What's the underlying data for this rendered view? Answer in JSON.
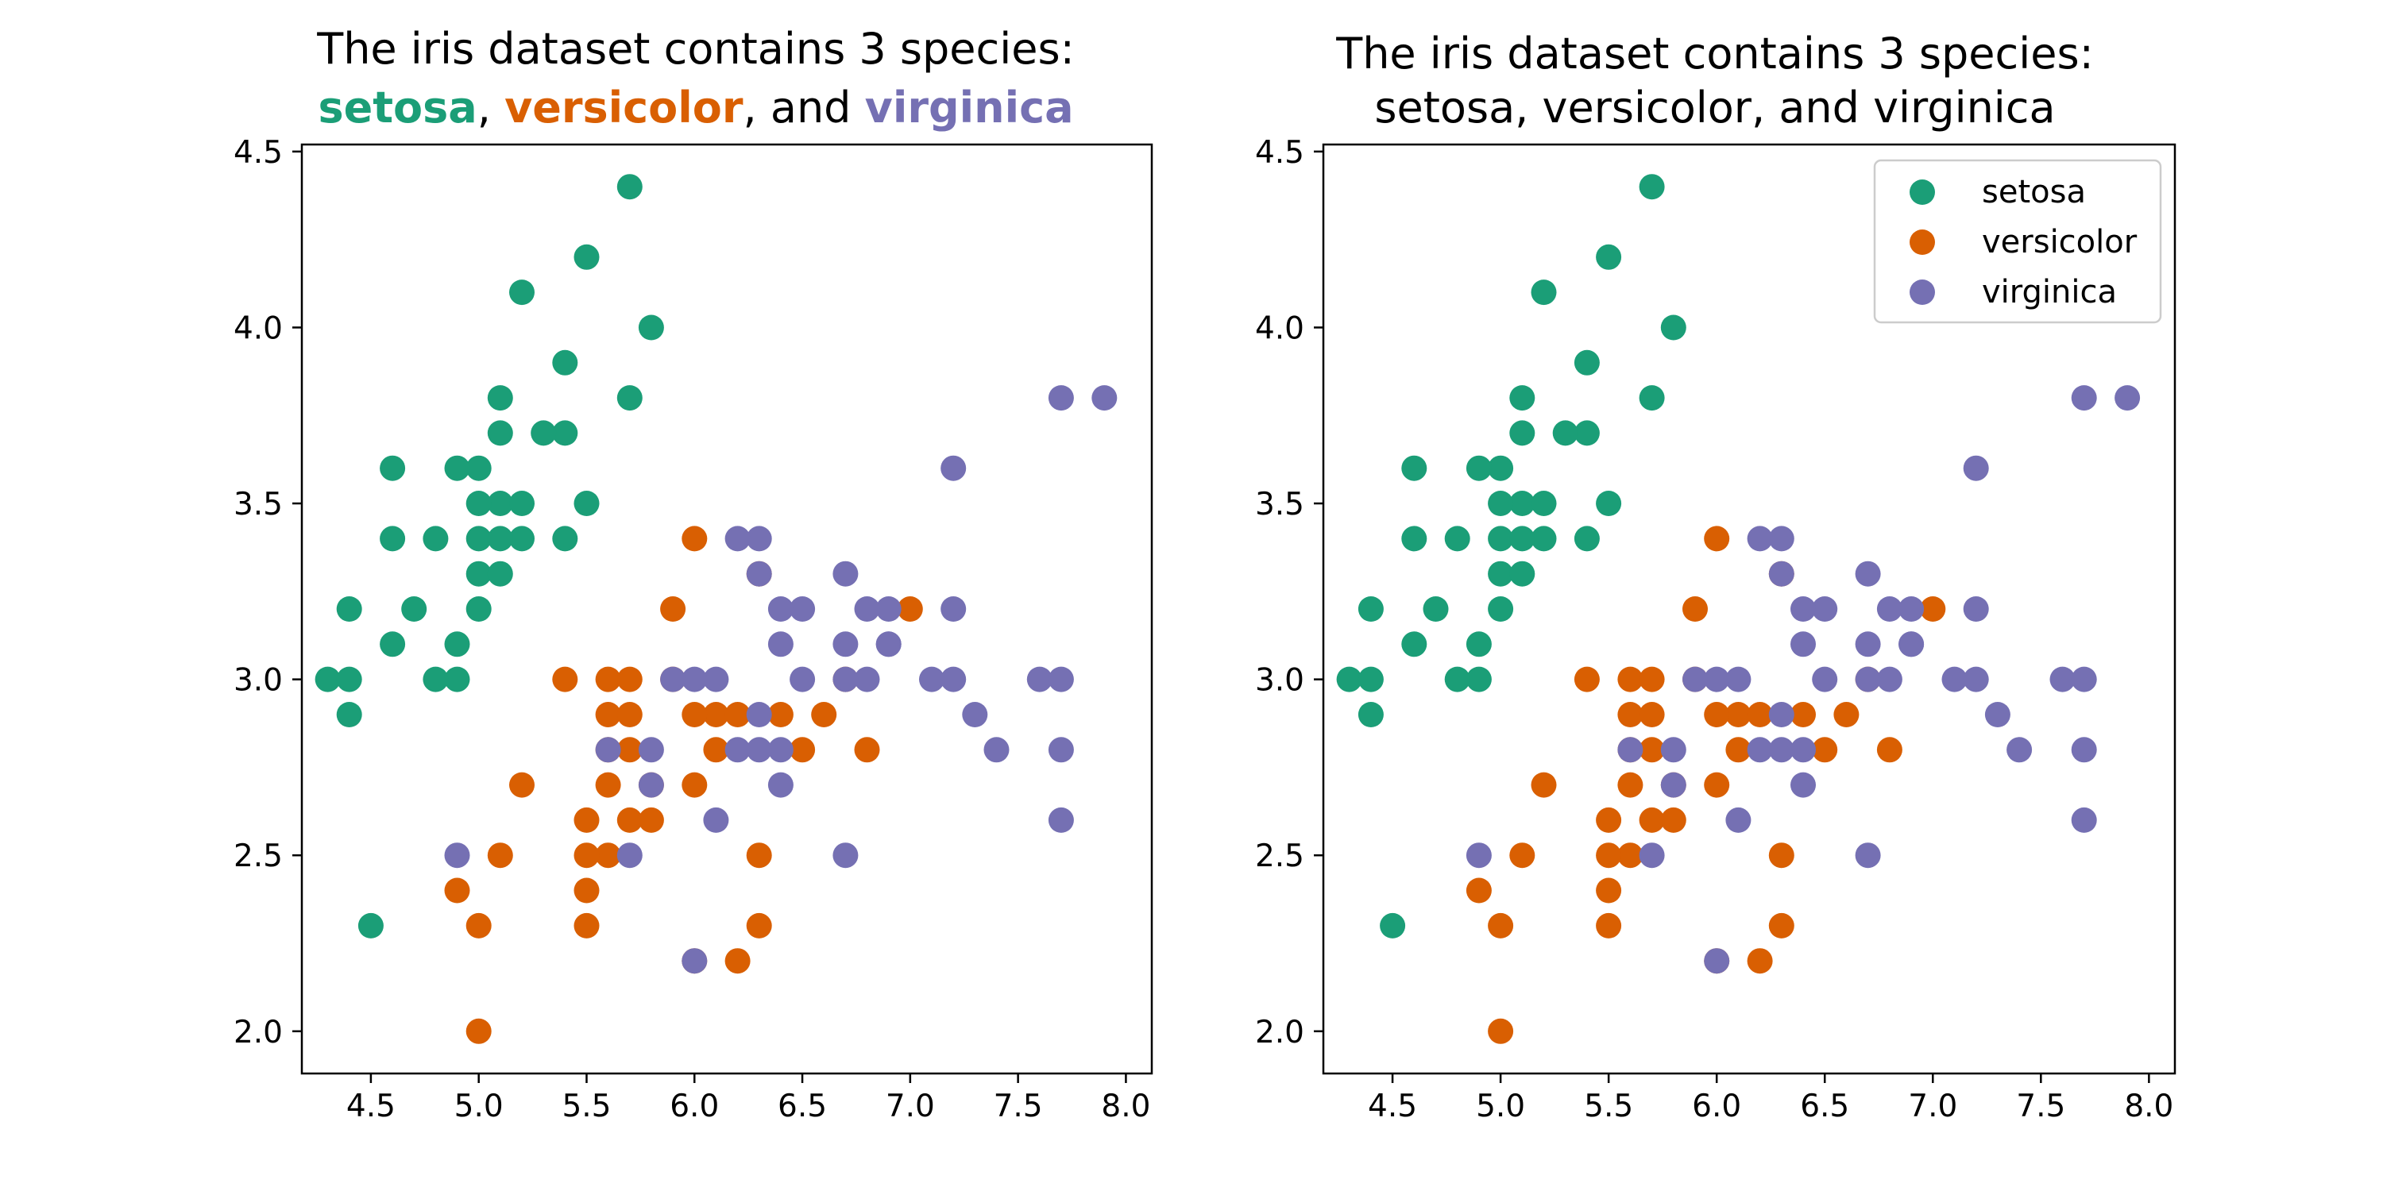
{
  "chart_data": [
    {
      "type": "scatter",
      "title_line1": "The iris dataset contains 3 species:",
      "title_line2_parts": [
        {
          "text": "setosa",
          "series": 0
        },
        {
          "text": ", "
        },
        {
          "text": "versicolor",
          "series": 1
        },
        {
          "text": ", and "
        },
        {
          "text": "virginica",
          "series": 2
        }
      ],
      "xlim": [
        4.18,
        8.12
      ],
      "ylim": [
        1.88,
        4.52
      ],
      "xticks": [
        "4.5",
        "5.0",
        "5.5",
        "6.0",
        "6.5",
        "7.0",
        "7.5",
        "8.0"
      ],
      "yticks": [
        "2.0",
        "2.5",
        "3.0",
        "3.5",
        "4.0",
        "4.5"
      ],
      "legend": null,
      "series": [
        {
          "name": "setosa",
          "color": "#1b9e77",
          "points": [
            [
              5.1,
              3.5
            ],
            [
              4.9,
              3.0
            ],
            [
              4.7,
              3.2
            ],
            [
              4.6,
              3.1
            ],
            [
              5.0,
              3.6
            ],
            [
              5.4,
              3.9
            ],
            [
              4.6,
              3.4
            ],
            [
              5.0,
              3.4
            ],
            [
              4.4,
              2.9
            ],
            [
              4.9,
              3.1
            ],
            [
              5.4,
              3.7
            ],
            [
              4.8,
              3.4
            ],
            [
              4.8,
              3.0
            ],
            [
              4.3,
              3.0
            ],
            [
              5.8,
              4.0
            ],
            [
              5.7,
              4.4
            ],
            [
              5.1,
              3.8
            ],
            [
              5.7,
              3.8
            ],
            [
              5.4,
              3.4
            ],
            [
              5.1,
              3.7
            ],
            [
              4.6,
              3.6
            ],
            [
              5.2,
              3.5
            ],
            [
              5.2,
              3.4
            ],
            [
              5.0,
              3.2
            ],
            [
              5.5,
              4.2
            ],
            [
              5.2,
              4.1
            ],
            [
              5.5,
              3.5
            ],
            [
              4.4,
              3.0
            ],
            [
              5.1,
              3.4
            ],
            [
              5.0,
              3.5
            ],
            [
              4.5,
              2.3
            ],
            [
              4.4,
              3.2
            ],
            [
              5.0,
              3.3
            ],
            [
              5.3,
              3.7
            ],
            [
              4.9,
              3.6
            ],
            [
              5.1,
              3.3
            ]
          ]
        },
        {
          "name": "versicolor",
          "color": "#d95f02",
          "points": [
            [
              7.0,
              3.2
            ],
            [
              6.5,
              2.8
            ],
            [
              5.7,
              2.8
            ],
            [
              6.3,
              3.3
            ],
            [
              4.9,
              2.4
            ],
            [
              6.6,
              2.9
            ],
            [
              5.2,
              2.7
            ],
            [
              5.0,
              2.0
            ],
            [
              5.9,
              3.0
            ],
            [
              6.0,
              2.2
            ],
            [
              6.1,
              2.9
            ],
            [
              5.6,
              2.9
            ],
            [
              5.6,
              3.0
            ],
            [
              5.8,
              2.7
            ],
            [
              6.2,
              2.2
            ],
            [
              5.6,
              2.5
            ],
            [
              5.9,
              3.2
            ],
            [
              6.1,
              2.8
            ],
            [
              6.3,
              2.5
            ],
            [
              6.4,
              2.9
            ],
            [
              6.8,
              2.8
            ],
            [
              6.7,
              3.0
            ],
            [
              6.0,
              2.9
            ],
            [
              5.7,
              2.6
            ],
            [
              5.5,
              2.4
            ],
            [
              5.5,
              2.3
            ],
            [
              5.8,
              2.6
            ],
            [
              5.4,
              3.0
            ],
            [
              6.0,
              3.4
            ],
            [
              5.6,
              2.7
            ],
            [
              5.5,
              2.5
            ],
            [
              5.5,
              2.6
            ],
            [
              5.0,
              2.3
            ],
            [
              5.7,
              2.9
            ],
            [
              5.7,
              3.0
            ],
            [
              6.2,
              2.9
            ],
            [
              5.1,
              2.5
            ],
            [
              6.3,
              2.3
            ],
            [
              6.0,
              2.7
            ],
            [
              5.6,
              2.8
            ]
          ]
        },
        {
          "name": "virginica",
          "color": "#7570b3",
          "points": [
            [
              6.3,
              3.3
            ],
            [
              5.8,
              2.7
            ],
            [
              7.1,
              3.0
            ],
            [
              6.3,
              2.9
            ],
            [
              6.5,
              3.0
            ],
            [
              7.6,
              3.0
            ],
            [
              4.9,
              2.5
            ],
            [
              7.3,
              2.9
            ],
            [
              6.7,
              2.5
            ],
            [
              7.2,
              3.6
            ],
            [
              6.5,
              3.2
            ],
            [
              6.4,
              2.7
            ],
            [
              6.8,
              3.0
            ],
            [
              5.7,
              2.5
            ],
            [
              5.8,
              2.8
            ],
            [
              6.4,
              3.2
            ],
            [
              7.7,
              3.8
            ],
            [
              7.7,
              2.6
            ],
            [
              6.0,
              2.2
            ],
            [
              6.9,
              3.2
            ],
            [
              5.6,
              2.8
            ],
            [
              7.7,
              2.8
            ],
            [
              6.7,
              3.3
            ],
            [
              7.2,
              3.2
            ],
            [
              6.2,
              2.8
            ],
            [
              6.1,
              3.0
            ],
            [
              6.4,
              2.8
            ],
            [
              7.2,
              3.0
            ],
            [
              7.4,
              2.8
            ],
            [
              7.9,
              3.8
            ],
            [
              6.3,
              2.8
            ],
            [
              6.1,
              2.6
            ],
            [
              7.7,
              3.0
            ],
            [
              6.3,
              3.4
            ],
            [
              6.4,
              3.1
            ],
            [
              6.0,
              3.0
            ],
            [
              6.9,
              3.1
            ],
            [
              6.7,
              3.1
            ],
            [
              6.9,
              3.1
            ],
            [
              6.8,
              3.2
            ],
            [
              6.7,
              3.0
            ],
            [
              6.2,
              3.4
            ],
            [
              5.9,
              3.0
            ]
          ]
        }
      ]
    },
    {
      "type": "scatter",
      "title_line1": "The iris dataset contains 3 species:",
      "title_line2": "setosa, versicolor, and virginica",
      "xlim": [
        4.18,
        8.12
      ],
      "ylim": [
        1.88,
        4.52
      ],
      "xticks": [
        "4.5",
        "5.0",
        "5.5",
        "6.0",
        "6.5",
        "7.0",
        "7.5",
        "8.0"
      ],
      "yticks": [
        "2.0",
        "2.5",
        "3.0",
        "3.5",
        "4.0",
        "4.5"
      ],
      "legend": "upper-right",
      "series": [
        {
          "name": "setosa",
          "color": "#1b9e77",
          "points": [
            [
              5.1,
              3.5
            ],
            [
              4.9,
              3.0
            ],
            [
              4.7,
              3.2
            ],
            [
              4.6,
              3.1
            ],
            [
              5.0,
              3.6
            ],
            [
              5.4,
              3.9
            ],
            [
              4.6,
              3.4
            ],
            [
              5.0,
              3.4
            ],
            [
              4.4,
              2.9
            ],
            [
              4.9,
              3.1
            ],
            [
              5.4,
              3.7
            ],
            [
              4.8,
              3.4
            ],
            [
              4.8,
              3.0
            ],
            [
              4.3,
              3.0
            ],
            [
              5.8,
              4.0
            ],
            [
              5.7,
              4.4
            ],
            [
              5.1,
              3.8
            ],
            [
              5.7,
              3.8
            ],
            [
              5.4,
              3.4
            ],
            [
              5.1,
              3.7
            ],
            [
              4.6,
              3.6
            ],
            [
              5.2,
              3.5
            ],
            [
              5.2,
              3.4
            ],
            [
              5.0,
              3.2
            ],
            [
              5.5,
              4.2
            ],
            [
              5.2,
              4.1
            ],
            [
              5.5,
              3.5
            ],
            [
              4.4,
              3.0
            ],
            [
              5.1,
              3.4
            ],
            [
              5.0,
              3.5
            ],
            [
              4.5,
              2.3
            ],
            [
              4.4,
              3.2
            ],
            [
              5.0,
              3.3
            ],
            [
              5.3,
              3.7
            ],
            [
              4.9,
              3.6
            ],
            [
              5.1,
              3.3
            ]
          ]
        },
        {
          "name": "versicolor",
          "color": "#d95f02",
          "points": [
            [
              7.0,
              3.2
            ],
            [
              6.5,
              2.8
            ],
            [
              5.7,
              2.8
            ],
            [
              6.3,
              3.3
            ],
            [
              4.9,
              2.4
            ],
            [
              6.6,
              2.9
            ],
            [
              5.2,
              2.7
            ],
            [
              5.0,
              2.0
            ],
            [
              5.9,
              3.0
            ],
            [
              6.0,
              2.2
            ],
            [
              6.1,
              2.9
            ],
            [
              5.6,
              2.9
            ],
            [
              5.6,
              3.0
            ],
            [
              5.8,
              2.7
            ],
            [
              6.2,
              2.2
            ],
            [
              5.6,
              2.5
            ],
            [
              5.9,
              3.2
            ],
            [
              6.1,
              2.8
            ],
            [
              6.3,
              2.5
            ],
            [
              6.4,
              2.9
            ],
            [
              6.8,
              2.8
            ],
            [
              6.7,
              3.0
            ],
            [
              6.0,
              2.9
            ],
            [
              5.7,
              2.6
            ],
            [
              5.5,
              2.4
            ],
            [
              5.5,
              2.3
            ],
            [
              5.8,
              2.6
            ],
            [
              5.4,
              3.0
            ],
            [
              6.0,
              3.4
            ],
            [
              5.6,
              2.7
            ],
            [
              5.5,
              2.5
            ],
            [
              5.5,
              2.6
            ],
            [
              5.0,
              2.3
            ],
            [
              5.7,
              2.9
            ],
            [
              5.7,
              3.0
            ],
            [
              6.2,
              2.9
            ],
            [
              5.1,
              2.5
            ],
            [
              6.3,
              2.3
            ],
            [
              6.0,
              2.7
            ],
            [
              5.6,
              2.8
            ]
          ]
        },
        {
          "name": "virginica",
          "color": "#7570b3",
          "points": [
            [
              6.3,
              3.3
            ],
            [
              5.8,
              2.7
            ],
            [
              7.1,
              3.0
            ],
            [
              6.3,
              2.9
            ],
            [
              6.5,
              3.0
            ],
            [
              7.6,
              3.0
            ],
            [
              4.9,
              2.5
            ],
            [
              7.3,
              2.9
            ],
            [
              6.7,
              2.5
            ],
            [
              7.2,
              3.6
            ],
            [
              6.5,
              3.2
            ],
            [
              6.4,
              2.7
            ],
            [
              6.8,
              3.0
            ],
            [
              5.7,
              2.5
            ],
            [
              5.8,
              2.8
            ],
            [
              6.4,
              3.2
            ],
            [
              7.7,
              3.8
            ],
            [
              7.7,
              2.6
            ],
            [
              6.0,
              2.2
            ],
            [
              6.9,
              3.2
            ],
            [
              5.6,
              2.8
            ],
            [
              7.7,
              2.8
            ],
            [
              6.7,
              3.3
            ],
            [
              7.2,
              3.2
            ],
            [
              6.2,
              2.8
            ],
            [
              6.1,
              3.0
            ],
            [
              6.4,
              2.8
            ],
            [
              7.2,
              3.0
            ],
            [
              7.4,
              2.8
            ],
            [
              7.9,
              3.8
            ],
            [
              6.3,
              2.8
            ],
            [
              6.1,
              2.6
            ],
            [
              7.7,
              3.0
            ],
            [
              6.3,
              3.4
            ],
            [
              6.4,
              3.1
            ],
            [
              6.0,
              3.0
            ],
            [
              6.9,
              3.1
            ],
            [
              6.7,
              3.1
            ],
            [
              6.9,
              3.1
            ],
            [
              6.8,
              3.2
            ],
            [
              6.7,
              3.0
            ],
            [
              6.2,
              3.4
            ],
            [
              5.9,
              3.0
            ]
          ]
        }
      ]
    }
  ]
}
